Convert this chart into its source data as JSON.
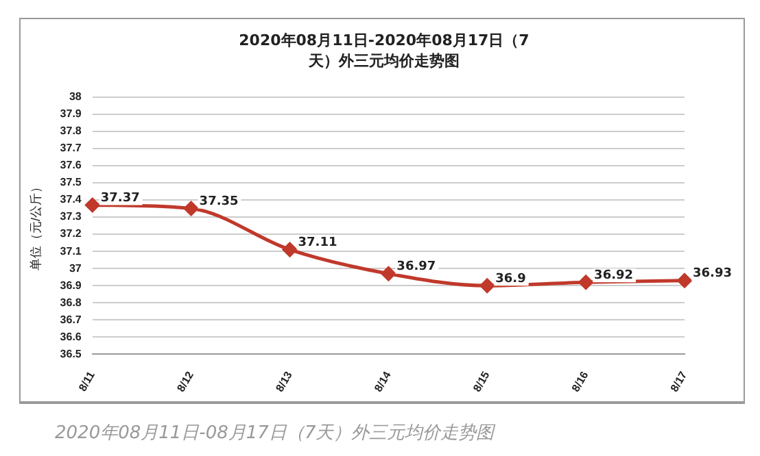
{
  "chart_data": {
    "type": "line",
    "title": "2020年08月11日-2020年08月17日（7天）外三元均价走势图",
    "ylabel": "单位（元/公斤）",
    "categories": [
      "8/11",
      "8/12",
      "8/13",
      "8/14",
      "8/15",
      "8/16",
      "8/17"
    ],
    "series": [
      {
        "color": "#c0392b",
        "values": [
          37.37,
          37.35,
          37.11,
          36.97,
          36.9,
          36.92,
          36.93
        ]
      }
    ],
    "ylim": [
      36.5,
      38
    ],
    "yticks": [
      36.5,
      36.6,
      36.7,
      36.8,
      36.9,
      37,
      37.1,
      37.2,
      37.3,
      37.4,
      37.5,
      37.6,
      37.7,
      37.8,
      37.9,
      38
    ],
    "grid": "y",
    "legend": false,
    "marker": "diamond",
    "line_style": "solid",
    "data_labels": true,
    "annotations": [
      "2020年08月11日-08月17日（7天）外三元均价走势图"
    ]
  }
}
